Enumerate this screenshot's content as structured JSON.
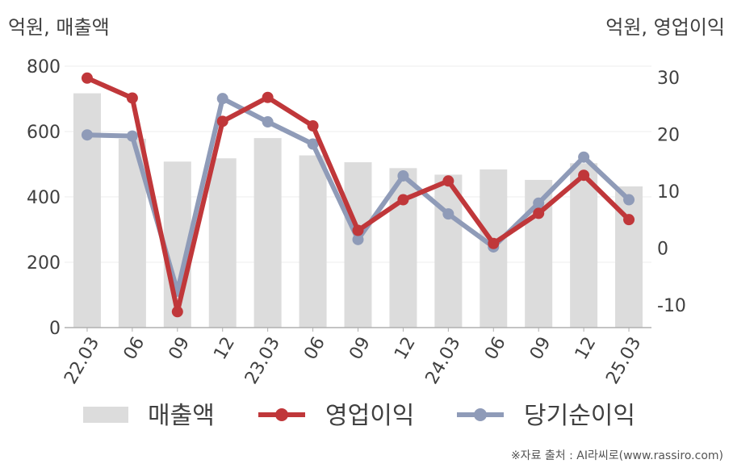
{
  "units": {
    "left": "억원, 매출액",
    "right": "억원, 영업이익"
  },
  "source": "※자료 출처 : AI라씨로(www.rassiro.com)",
  "colors": {
    "revenue": "#dcdcdc",
    "operating_profit": "#c0373a",
    "net_profit": "#8f9bb8",
    "axis": "#b0b0b0",
    "grid": "#ececec"
  },
  "chart_data": {
    "type": "bar+line",
    "categories": [
      "22.03",
      "06",
      "09",
      "12",
      "23.03",
      "06",
      "09",
      "12",
      "24.03",
      "06",
      "09",
      "12",
      "25.03"
    ],
    "y_left": {
      "ylim": [
        0,
        800
      ],
      "ticks": [
        0,
        200,
        400,
        600,
        800
      ]
    },
    "y_right": {
      "ylim": [
        -14,
        32
      ],
      "ticks": [
        -10,
        0,
        10,
        20,
        30
      ]
    },
    "grid": true,
    "legend_position": "bottom",
    "series": [
      {
        "name": "매출액",
        "type": "bar",
        "axis": "left",
        "values": [
          717,
          578,
          508,
          518,
          580,
          527,
          506,
          488,
          468,
          484,
          452,
          503,
          432
        ]
      },
      {
        "name": "영업이익",
        "type": "line",
        "axis": "right",
        "values": [
          29.9,
          26.4,
          -11.2,
          22.3,
          26.5,
          21.5,
          3.1,
          8.5,
          11.8,
          0.8,
          6.1,
          12.8,
          5.0
        ]
      },
      {
        "name": "당기순이익",
        "type": "line",
        "axis": "right",
        "values": [
          19.9,
          19.7,
          -7.6,
          26.3,
          22.2,
          18.3,
          1.5,
          12.7,
          6.0,
          0.2,
          7.9,
          16.0,
          8.5
        ]
      }
    ]
  }
}
